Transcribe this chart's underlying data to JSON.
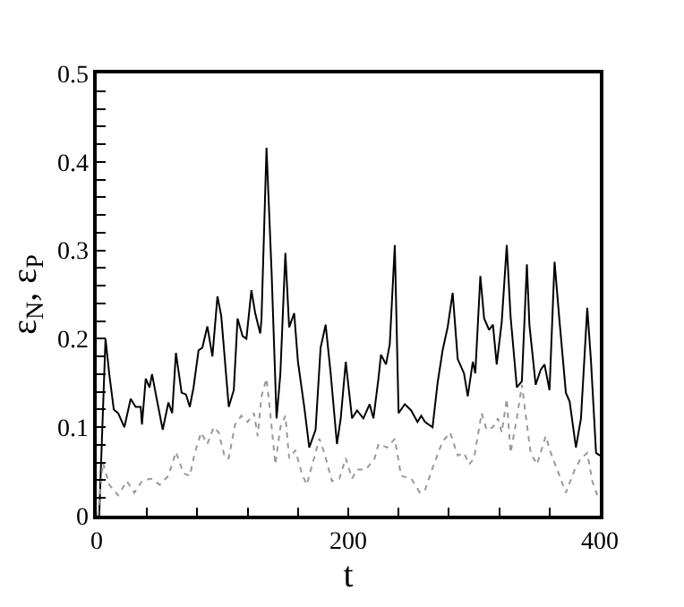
{
  "chart_data": {
    "type": "line",
    "xlabel": "t",
    "ylabel": "ε$_{N}$, ε$_{P}$",
    "xlim": [
      0,
      400
    ],
    "ylim": [
      0,
      0.5
    ],
    "xticks": [
      0,
      {
        "value": 40,
        "label": null
      },
      {
        "value": 80,
        "label": null
      },
      {
        "value": 120,
        "label": null
      },
      {
        "value": 160,
        "label": null
      },
      200,
      {
        "value": 240,
        "label": null
      },
      {
        "value": 280,
        "label": null
      },
      {
        "value": 320,
        "label": null
      },
      {
        "value": 360,
        "label": null
      },
      400
    ],
    "yticks": [
      0,
      {
        "value": 0.02,
        "label": null
      },
      {
        "value": 0.04,
        "label": null
      },
      {
        "value": 0.06,
        "label": null
      },
      {
        "value": 0.08,
        "label": null
      },
      0.1,
      {
        "value": 0.12,
        "label": null
      },
      {
        "value": 0.14,
        "label": null
      },
      {
        "value": 0.16,
        "label": null
      },
      {
        "value": 0.18,
        "label": null
      },
      0.2,
      {
        "value": 0.22,
        "label": null
      },
      {
        "value": 0.24,
        "label": null
      },
      {
        "value": 0.26,
        "label": null
      },
      {
        "value": 0.28,
        "label": null
      },
      0.3,
      {
        "value": 0.32,
        "label": null
      },
      {
        "value": 0.34,
        "label": null
      },
      {
        "value": 0.36,
        "label": null
      },
      {
        "value": 0.38,
        "label": null
      },
      0.4,
      {
        "value": 0.42,
        "label": null
      },
      {
        "value": 0.44,
        "label": null
      },
      {
        "value": 0.46,
        "label": null
      },
      {
        "value": 0.48,
        "label": null
      },
      0.5
    ],
    "marker": "none",
    "series": [
      {
        "color": "#000000",
        "line_style": "solid",
        "x": [
          2,
          7,
          10,
          13.6,
          17,
          22,
          27,
          31,
          35,
          36,
          39,
          42,
          44,
          48,
          52.5,
          57,
          60,
          63,
          67.5,
          71,
          74,
          77,
          81,
          84,
          88,
          92,
          96,
          99,
          105,
          109,
          112,
          116,
          119,
          123,
          126,
          130,
          131,
          135,
          139,
          143,
          146,
          150,
          153,
          157,
          160,
          165,
          169,
          174,
          178,
          182,
          186,
          191,
          194,
          198,
          203,
          207,
          212,
          217,
          220,
          224,
          226,
          230,
          233,
          237,
          240,
          245,
          250,
          255,
          258,
          261,
          267,
          271,
          275,
          279,
          283,
          287,
          292,
          295,
          299,
          301,
          305,
          308,
          312,
          315,
          318,
          322,
          326,
          329,
          334,
          338,
          342,
          344,
          349,
          353,
          356,
          360,
          364,
          368,
          373,
          376,
          381,
          385,
          390,
          393,
          397,
          400
        ],
        "values": [
          0.0,
          0.2,
          0.16,
          0.12,
          0.116,
          0.1,
          0.132,
          0.123,
          0.123,
          0.103,
          0.155,
          0.145,
          0.16,
          0.13,
          0.097,
          0.128,
          0.116,
          0.184,
          0.139,
          0.137,
          0.123,
          0.145,
          0.187,
          0.19,
          0.214,
          0.18,
          0.248,
          0.226,
          0.123,
          0.142,
          0.223,
          0.203,
          0.2,
          0.255,
          0.229,
          0.206,
          0.222,
          0.416,
          0.277,
          0.11,
          0.16,
          0.297,
          0.213,
          0.229,
          0.174,
          0.123,
          0.077,
          0.097,
          0.19,
          0.216,
          0.161,
          0.081,
          0.11,
          0.174,
          0.11,
          0.119,
          0.11,
          0.126,
          0.11,
          0.155,
          0.182,
          0.171,
          0.194,
          0.306,
          0.116,
          0.126,
          0.119,
          0.106,
          0.113,
          0.106,
          0.1,
          0.15,
          0.187,
          0.213,
          0.252,
          0.177,
          0.161,
          0.135,
          0.174,
          0.161,
          0.271,
          0.223,
          0.21,
          0.216,
          0.171,
          0.219,
          0.306,
          0.226,
          0.145,
          0.152,
          0.284,
          0.216,
          0.148,
          0.165,
          0.171,
          0.142,
          0.287,
          0.219,
          0.139,
          0.129,
          0.077,
          0.11,
          0.235,
          0.174,
          0.071,
          0.068
        ]
      },
      {
        "color": "#999999",
        "line_style": "dotted",
        "x": [
          1,
          5,
          10,
          17,
          24,
          30,
          36,
          43,
          50,
          57,
          63,
          69,
          74,
          78,
          83,
          88,
          93,
          97,
          102,
          105,
          110,
          115,
          120,
          125,
          128,
          131,
          135,
          138,
          142,
          146,
          150,
          153,
          158,
          163,
          167,
          177,
          181,
          187,
          193,
          198,
          203,
          207,
          214,
          221,
          224,
          231,
          237,
          242,
          250,
          257,
          261,
          268,
          275,
          281,
          287,
          292,
          296,
          300,
          306,
          310,
          315,
          319,
          322,
          326,
          329,
          334,
          338,
          342,
          345,
          350,
          357,
          361,
          368,
          373,
          380,
          385,
          390,
          394,
          398
        ],
        "values": [
          0.0,
          0.06,
          0.035,
          0.023,
          0.039,
          0.026,
          0.039,
          0.042,
          0.035,
          0.045,
          0.072,
          0.048,
          0.045,
          0.071,
          0.094,
          0.081,
          0.1,
          0.094,
          0.065,
          0.065,
          0.103,
          0.113,
          0.106,
          0.116,
          0.09,
          0.135,
          0.155,
          0.116,
          0.058,
          0.1,
          0.113,
          0.065,
          0.074,
          0.048,
          0.035,
          0.087,
          0.071,
          0.039,
          0.042,
          0.065,
          0.042,
          0.052,
          0.052,
          0.065,
          0.081,
          0.077,
          0.087,
          0.045,
          0.042,
          0.026,
          0.029,
          0.058,
          0.084,
          0.094,
          0.068,
          0.071,
          0.058,
          0.065,
          0.116,
          0.097,
          0.1,
          0.11,
          0.094,
          0.132,
          0.071,
          0.11,
          0.148,
          0.103,
          0.071,
          0.058,
          0.09,
          0.071,
          0.045,
          0.026,
          0.052,
          0.065,
          0.071,
          0.039,
          0.023
        ]
      }
    ]
  }
}
